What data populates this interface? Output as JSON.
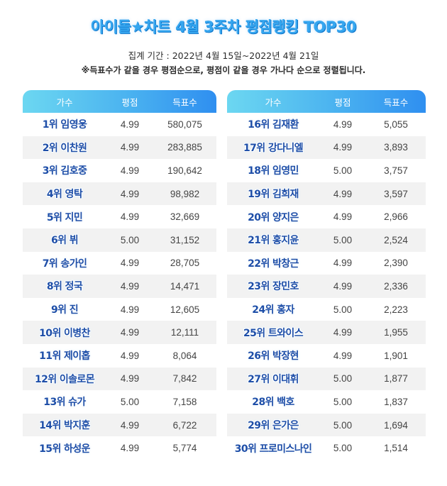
{
  "title": "아이돌★차트 4월 3주차 평점랭킹 TOP30",
  "period": "집계 기간 : 2022년 4월 15일~2022년 4월 21일",
  "note": "※득표수가 같을 경우 평점순으로, 평점이 같을 경우 가나다 순으로 정렬됩니다.",
  "headers": {
    "artist": "가수",
    "score": "평점",
    "votes": "득표수"
  },
  "left_rows": [
    {
      "rank_name": "1위 임영웅",
      "score": "4.99",
      "votes": "580,075"
    },
    {
      "rank_name": "2위 이찬원",
      "score": "4.99",
      "votes": "283,885"
    },
    {
      "rank_name": "3위 김호중",
      "score": "4.99",
      "votes": "190,642"
    },
    {
      "rank_name": "4위 영탁",
      "score": "4.99",
      "votes": "98,982"
    },
    {
      "rank_name": "5위 지민",
      "score": "4.99",
      "votes": "32,669"
    },
    {
      "rank_name": "6위 뷔",
      "score": "5.00",
      "votes": "31,152"
    },
    {
      "rank_name": "7위 송가인",
      "score": "4.99",
      "votes": "28,705"
    },
    {
      "rank_name": "8위 정국",
      "score": "4.99",
      "votes": "14,471"
    },
    {
      "rank_name": "9위 진",
      "score": "4.99",
      "votes": "12,605"
    },
    {
      "rank_name": "10위 이병찬",
      "score": "4.99",
      "votes": "12,111"
    },
    {
      "rank_name": "11위 제이홉",
      "score": "4.99",
      "votes": "8,064"
    },
    {
      "rank_name": "12위 이솔로몬",
      "score": "4.99",
      "votes": "7,842"
    },
    {
      "rank_name": "13위 슈가",
      "score": "5.00",
      "votes": "7,158"
    },
    {
      "rank_name": "14위 박지훈",
      "score": "4.99",
      "votes": "6,722"
    },
    {
      "rank_name": "15위 하성운",
      "score": "4.99",
      "votes": "5,774"
    }
  ],
  "right_rows": [
    {
      "rank_name": "16위 김재환",
      "score": "4.99",
      "votes": "5,055"
    },
    {
      "rank_name": "17위 강다니엘",
      "score": "4.99",
      "votes": "3,893"
    },
    {
      "rank_name": "18위 임영민",
      "score": "5.00",
      "votes": "3,757"
    },
    {
      "rank_name": "19위 김희재",
      "score": "4.99",
      "votes": "3,597"
    },
    {
      "rank_name": "20위 양지은",
      "score": "4.99",
      "votes": "2,966"
    },
    {
      "rank_name": "21위 홍지윤",
      "score": "5.00",
      "votes": "2,524"
    },
    {
      "rank_name": "22위 박창근",
      "score": "4.99",
      "votes": "2,390"
    },
    {
      "rank_name": "23위 장민호",
      "score": "4.99",
      "votes": "2,336"
    },
    {
      "rank_name": "24위 홍자",
      "score": "5.00",
      "votes": "2,223"
    },
    {
      "rank_name": "25위 트와이스",
      "score": "4.99",
      "votes": "1,955"
    },
    {
      "rank_name": "26위 박장현",
      "score": "4.99",
      "votes": "1,901"
    },
    {
      "rank_name": "27위 이대휘",
      "score": "5.00",
      "votes": "1,877"
    },
    {
      "rank_name": "28위 백호",
      "score": "5.00",
      "votes": "1,837"
    },
    {
      "rank_name": "29위 은가은",
      "score": "5.00",
      "votes": "1,694"
    },
    {
      "rank_name": "30위 프로미스나인",
      "score": "5.00",
      "votes": "1,514"
    }
  ],
  "colors": {
    "title": "#35a6ef",
    "header_start": "#6cd7f1",
    "header_end": "#2f8ff0",
    "name_text": "#1d4ea8",
    "stripe": "#f2f2f2"
  }
}
